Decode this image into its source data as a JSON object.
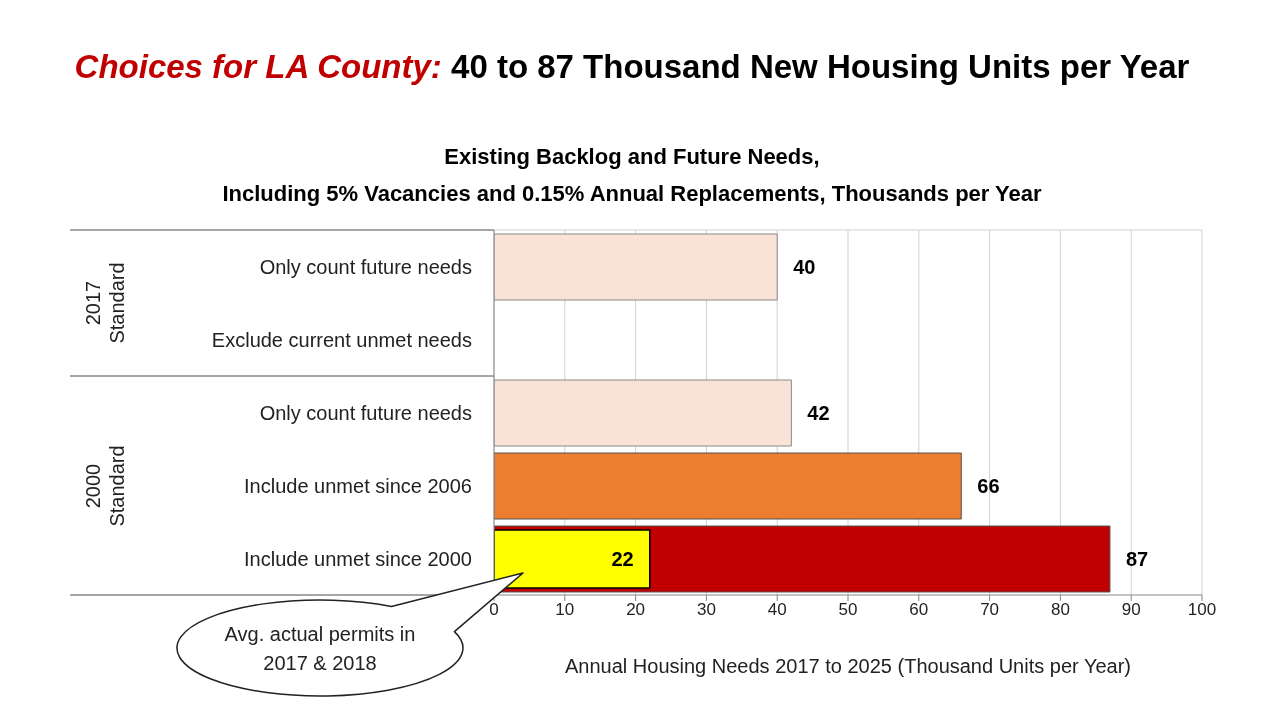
{
  "chart_data": {
    "type": "bar",
    "orientation": "horizontal",
    "title": "Choices for LA County: 40 to 87 Thousand New Housing Units per Year",
    "subtitle": "Existing Backlog and Future Needs,\nIncluding 5% Vacancies and 0.15% Annual Replacements, Thousands per Year",
    "xlabel": "Annual Housing Needs 2017 to 2025 (Thousand Units per Year)",
    "categories": [
      "Only count future needs",
      "Exclude current unmet needs",
      "Only count future needs",
      "Include unmet since 2006",
      "Include unmet since 2000"
    ],
    "series": [
      {
        "values": [
          40,
          null,
          42,
          66,
          87
        ],
        "colors": [
          "#f9e3d7",
          "#ffffff",
          "#f9e3d7",
          "#ed7d31",
          "#c00000"
        ]
      },
      {
        "values": [
          null,
          null,
          null,
          null,
          22
        ],
        "color": "#ffff00"
      }
    ],
    "xlim": [
      0,
      100
    ],
    "xticks": [
      0,
      10,
      20,
      30,
      40,
      50,
      60,
      70,
      80,
      90,
      100
    ],
    "grid": "x",
    "data_labels": true,
    "annotations": [
      "2017 Standard",
      "2000 Standard",
      "Avg. actual permits in 2017 & 2018"
    ]
  }
}
